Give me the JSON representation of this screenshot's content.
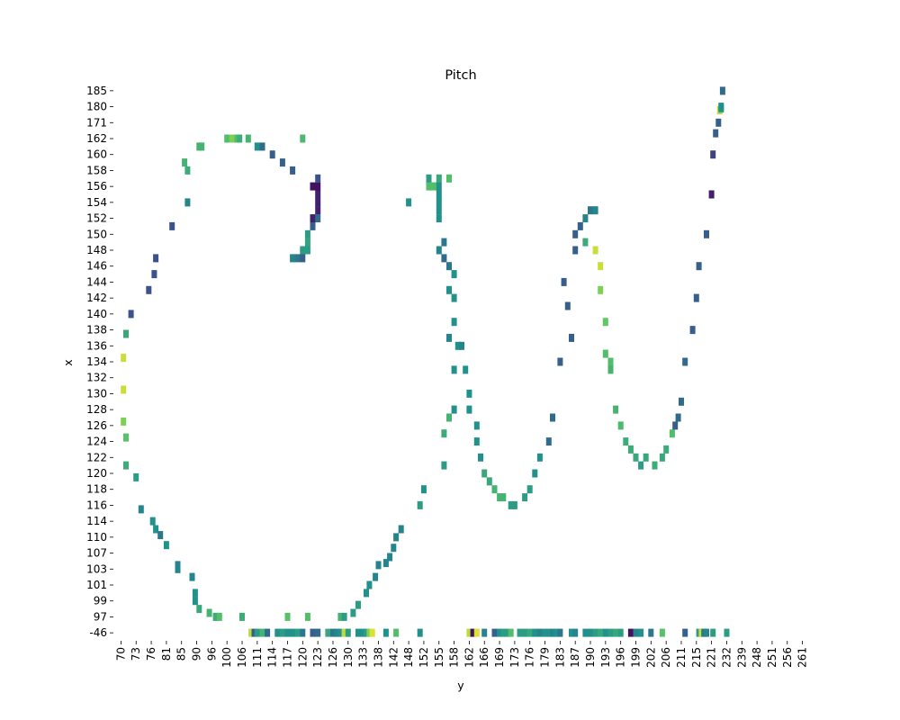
{
  "chart_data": {
    "type": "heatmap",
    "title": "Pitch",
    "xlabel": "y",
    "ylabel": "x",
    "colormap": "viridis",
    "grid": false,
    "legend": "none",
    "x_ticks": [
      "70",
      "73",
      "76",
      "81",
      "85",
      "90",
      "96",
      "100",
      "106",
      "111",
      "114",
      "117",
      "120",
      "123",
      "126",
      "130",
      "133",
      "138",
      "142",
      "148",
      "152",
      "155",
      "158",
      "162",
      "166",
      "169",
      "173",
      "176",
      "179",
      "183",
      "187",
      "190",
      "193",
      "196",
      "199",
      "202",
      "206",
      "211",
      "215",
      "221",
      "232",
      "239",
      "248",
      "251",
      "256",
      "261"
    ],
    "y_ticks": [
      "185",
      "180",
      "171",
      "162",
      "160",
      "158",
      "156",
      "154",
      "152",
      "150",
      "148",
      "146",
      "144",
      "142",
      "140",
      "138",
      "136",
      "134",
      "132",
      "130",
      "128",
      "126",
      "124",
      "122",
      "120",
      "118",
      "116",
      "114",
      "110",
      "107",
      "103",
      "101",
      "99",
      "97",
      "-46"
    ],
    "x_axis": {
      "range": [
        70,
        265
      ]
    },
    "y_axis": {
      "range": [
        -46,
        185
      ]
    },
    "point_shape_note": "",
    "cells": [
      [
        70.5,
        134.5,
        0.92
      ],
      [
        70.5,
        130.5,
        0.92
      ],
      [
        70.5,
        126.5,
        0.8
      ],
      [
        71,
        124.5,
        0.72
      ],
      [
        71,
        121,
        0.62
      ],
      [
        71,
        137.5,
        0.6
      ],
      [
        72,
        140,
        0.25
      ],
      [
        73,
        119.5,
        0.55
      ],
      [
        74,
        115.5,
        0.45
      ],
      [
        75.5,
        143,
        0.25
      ],
      [
        77,
        145,
        0.25
      ],
      [
        77.5,
        147,
        0.25
      ],
      [
        76.5,
        114,
        0.5
      ],
      [
        77.5,
        112,
        0.5
      ],
      [
        79,
        110.5,
        0.4
      ],
      [
        81,
        108.5,
        0.5
      ],
      [
        82.5,
        151,
        0.25
      ],
      [
        84,
        104,
        0.45
      ],
      [
        84,
        103,
        0.45
      ],
      [
        86,
        159,
        0.65
      ],
      [
        87,
        158,
        0.62
      ],
      [
        87,
        154,
        0.45
      ],
      [
        88.5,
        102,
        0.45
      ],
      [
        89.5,
        100,
        0.5
      ],
      [
        89.5,
        99,
        0.5
      ],
      [
        91,
        98,
        0.6
      ],
      [
        91,
        161,
        0.65
      ],
      [
        92,
        161,
        0.65
      ],
      [
        95,
        97.5,
        0.65
      ],
      [
        97,
        96,
        0.62
      ],
      [
        98,
        97,
        0.7
      ],
      [
        100,
        162,
        0.7
      ],
      [
        102,
        162,
        0.8
      ],
      [
        104,
        162,
        0.7
      ],
      [
        105,
        162,
        0.62
      ],
      [
        106,
        94,
        0.62
      ],
      [
        108,
        162,
        0.65
      ],
      [
        111,
        161,
        0.5
      ],
      [
        112,
        161,
        0.35
      ],
      [
        114,
        160,
        0.3
      ],
      [
        116,
        159,
        0.3
      ],
      [
        118,
        158,
        0.3
      ],
      [
        120,
        162,
        0.68
      ],
      [
        117,
        97,
        0.72
      ],
      [
        121,
        97,
        0.7
      ],
      [
        118,
        147,
        0.45
      ],
      [
        119,
        147,
        0.4
      ],
      [
        120,
        147,
        0.3
      ],
      [
        120,
        148,
        0.55
      ],
      [
        121,
        148,
        0.55
      ],
      [
        121,
        149,
        0.58
      ],
      [
        121,
        150,
        0.55
      ],
      [
        122,
        151,
        0.3
      ],
      [
        122,
        152,
        0.1
      ],
      [
        123,
        152,
        0.35
      ],
      [
        123,
        153,
        0.1
      ],
      [
        123,
        154,
        0.1
      ],
      [
        123,
        155,
        0.1
      ],
      [
        122,
        156,
        0.05
      ],
      [
        123,
        156,
        0.05
      ],
      [
        123,
        157,
        0.25
      ],
      [
        128,
        97,
        0.65
      ],
      [
        129,
        96,
        0.55
      ],
      [
        131,
        97.5,
        0.55
      ],
      [
        132,
        98.5,
        0.55
      ],
      [
        134,
        100,
        0.5
      ],
      [
        135,
        101,
        0.5
      ],
      [
        137,
        102,
        0.45
      ],
      [
        138,
        104,
        0.45
      ],
      [
        140,
        104.5,
        0.45
      ],
      [
        141,
        106,
        0.45
      ],
      [
        142,
        108,
        0.45
      ],
      [
        143,
        110,
        0.45
      ],
      [
        145,
        112,
        0.45
      ],
      [
        148,
        154,
        0.5
      ],
      [
        151,
        116,
        0.55
      ],
      [
        152,
        118,
        0.5
      ],
      [
        153,
        156,
        0.7
      ],
      [
        153,
        157,
        0.55
      ],
      [
        154,
        156,
        0.7
      ],
      [
        155,
        157,
        0.6
      ],
      [
        155,
        156,
        0.5
      ],
      [
        155,
        155,
        0.5
      ],
      [
        155,
        154,
        0.5
      ],
      [
        155,
        153,
        0.5
      ],
      [
        155,
        152,
        0.5
      ],
      [
        155,
        148,
        0.45
      ],
      [
        156,
        149,
        0.4
      ],
      [
        156,
        147,
        0.35
      ],
      [
        157,
        146,
        0.4
      ],
      [
        158,
        145,
        0.5
      ],
      [
        157,
        143,
        0.5
      ],
      [
        158,
        142,
        0.5
      ],
      [
        157,
        157,
        0.7
      ],
      [
        156,
        121,
        0.55
      ],
      [
        156,
        125,
        0.62
      ],
      [
        157,
        127,
        0.65
      ],
      [
        157,
        137,
        0.45
      ],
      [
        158,
        139,
        0.5
      ],
      [
        158,
        128,
        0.5
      ],
      [
        158,
        133,
        0.5
      ],
      [
        159,
        136,
        0.5
      ],
      [
        160,
        136,
        0.45
      ],
      [
        161,
        133,
        0.5
      ],
      [
        162,
        130,
        0.5
      ],
      [
        162,
        128,
        0.5
      ],
      [
        164,
        126,
        0.5
      ],
      [
        164,
        124,
        0.5
      ],
      [
        165,
        122,
        0.5
      ],
      [
        166,
        120,
        0.6
      ],
      [
        167,
        119,
        0.6
      ],
      [
        168,
        118,
        0.65
      ],
      [
        169,
        117,
        0.65
      ],
      [
        170,
        117,
        0.65
      ],
      [
        172,
        116,
        0.55
      ],
      [
        173,
        116,
        0.55
      ],
      [
        175,
        117,
        0.55
      ],
      [
        176,
        118,
        0.55
      ],
      [
        177,
        120,
        0.5
      ],
      [
        178,
        122,
        0.5
      ],
      [
        180,
        124,
        0.35
      ],
      [
        181,
        127,
        0.35
      ],
      [
        183,
        134,
        0.3
      ],
      [
        184,
        144,
        0.3
      ],
      [
        185,
        141,
        0.3
      ],
      [
        186,
        137,
        0.3
      ],
      [
        187,
        148,
        0.3
      ],
      [
        187,
        150,
        0.3
      ],
      [
        188,
        151,
        0.3
      ],
      [
        189,
        152,
        0.45
      ],
      [
        189,
        149,
        0.62
      ],
      [
        190,
        153,
        0.4
      ],
      [
        191,
        153,
        0.45
      ],
      [
        191,
        148,
        0.92
      ],
      [
        192,
        146,
        0.92
      ],
      [
        192,
        143,
        0.8
      ],
      [
        193,
        139,
        0.75
      ],
      [
        193,
        135,
        0.7
      ],
      [
        194,
        134,
        0.7
      ],
      [
        194,
        133,
        0.65
      ],
      [
        195,
        128,
        0.65
      ],
      [
        196,
        126,
        0.68
      ],
      [
        197,
        124,
        0.62
      ],
      [
        198,
        123,
        0.62
      ],
      [
        199,
        122,
        0.6
      ],
      [
        200,
        121,
        0.55
      ],
      [
        201,
        122,
        0.6
      ],
      [
        203,
        121,
        0.62
      ],
      [
        205,
        122,
        0.6
      ],
      [
        206,
        123,
        0.62
      ],
      [
        208,
        125,
        0.7
      ],
      [
        209,
        126,
        0.3
      ],
      [
        210,
        127,
        0.35
      ],
      [
        211,
        129,
        0.35
      ],
      [
        212,
        134,
        0.35
      ],
      [
        214,
        138,
        0.3
      ],
      [
        215,
        142,
        0.3
      ],
      [
        216,
        146,
        0.3
      ],
      [
        219,
        150,
        0.3
      ],
      [
        221,
        155,
        0.1
      ],
      [
        222,
        160,
        0.2
      ],
      [
        224,
        165,
        0.3
      ],
      [
        226,
        171,
        0.3
      ],
      [
        227,
        178,
        0.9
      ],
      [
        228,
        179,
        0.55
      ],
      [
        228,
        180,
        0.5
      ],
      [
        229,
        185,
        0.35
      ],
      [
        109,
        -46,
        0.9
      ],
      [
        110,
        -46,
        0.3
      ],
      [
        111,
        -46,
        0.55
      ],
      [
        112,
        -46,
        0.65
      ],
      [
        113,
        -46,
        0.35
      ],
      [
        115,
        -46,
        0.5
      ],
      [
        116,
        -46,
        0.55
      ],
      [
        117,
        -46,
        0.5
      ],
      [
        118,
        -46,
        0.5
      ],
      [
        119,
        -46,
        0.55
      ],
      [
        120,
        -46,
        0.4
      ],
      [
        122,
        -46,
        0.3
      ],
      [
        123,
        -46,
        0.35
      ],
      [
        125,
        -46,
        0.6
      ],
      [
        126,
        -46,
        0.4
      ],
      [
        127,
        -46,
        0.45
      ],
      [
        128,
        -46,
        0.5
      ],
      [
        129,
        -46,
        0.9
      ],
      [
        130,
        -46,
        0.55
      ],
      [
        132,
        -46,
        0.5
      ],
      [
        133,
        -46,
        0.5
      ],
      [
        134,
        -46,
        0.55
      ],
      [
        135,
        -46,
        0.8
      ],
      [
        136,
        -46,
        0.95
      ],
      [
        140,
        -46,
        0.5
      ],
      [
        143,
        -46,
        0.7
      ],
      [
        151,
        -46,
        0.5
      ],
      [
        162,
        -46,
        0.9
      ],
      [
        163,
        -46,
        0.05
      ],
      [
        164,
        -46,
        0.95
      ],
      [
        166,
        -46,
        0.45
      ],
      [
        168,
        -46,
        0.3
      ],
      [
        169,
        -46,
        0.5
      ],
      [
        170,
        -46,
        0.55
      ],
      [
        171,
        -46,
        0.55
      ],
      [
        172,
        -46,
        0.7
      ],
      [
        174,
        -46,
        0.55
      ],
      [
        175,
        -46,
        0.55
      ],
      [
        176,
        -46,
        0.6
      ],
      [
        177,
        -46,
        0.5
      ],
      [
        178,
        -46,
        0.45
      ],
      [
        179,
        -46,
        0.5
      ],
      [
        180,
        -46,
        0.5
      ],
      [
        181,
        -46,
        0.45
      ],
      [
        182,
        -46,
        0.5
      ],
      [
        183,
        -46,
        0.4
      ],
      [
        186,
        -46,
        0.5
      ],
      [
        187,
        -46,
        0.45
      ],
      [
        189,
        -46,
        0.5
      ],
      [
        190,
        -46,
        0.5
      ],
      [
        191,
        -46,
        0.55
      ],
      [
        192,
        -46,
        0.6
      ],
      [
        193,
        -46,
        0.5
      ],
      [
        194,
        -46,
        0.55
      ],
      [
        195,
        -46,
        0.6
      ],
      [
        196,
        -46,
        0.55
      ],
      [
        198,
        -46,
        0.05
      ],
      [
        199,
        -46,
        0.45
      ],
      [
        200,
        -46,
        0.5
      ],
      [
        202,
        -46,
        0.4
      ],
      [
        205,
        -46,
        0.72
      ],
      [
        212,
        -46,
        0.3
      ],
      [
        216,
        -46,
        0.55
      ],
      [
        217,
        -46,
        0.92
      ],
      [
        218,
        -46,
        0.4
      ],
      [
        219,
        -46,
        0.45
      ],
      [
        222,
        -46,
        0.55
      ],
      [
        232,
        -46,
        0.55
      ]
    ]
  }
}
